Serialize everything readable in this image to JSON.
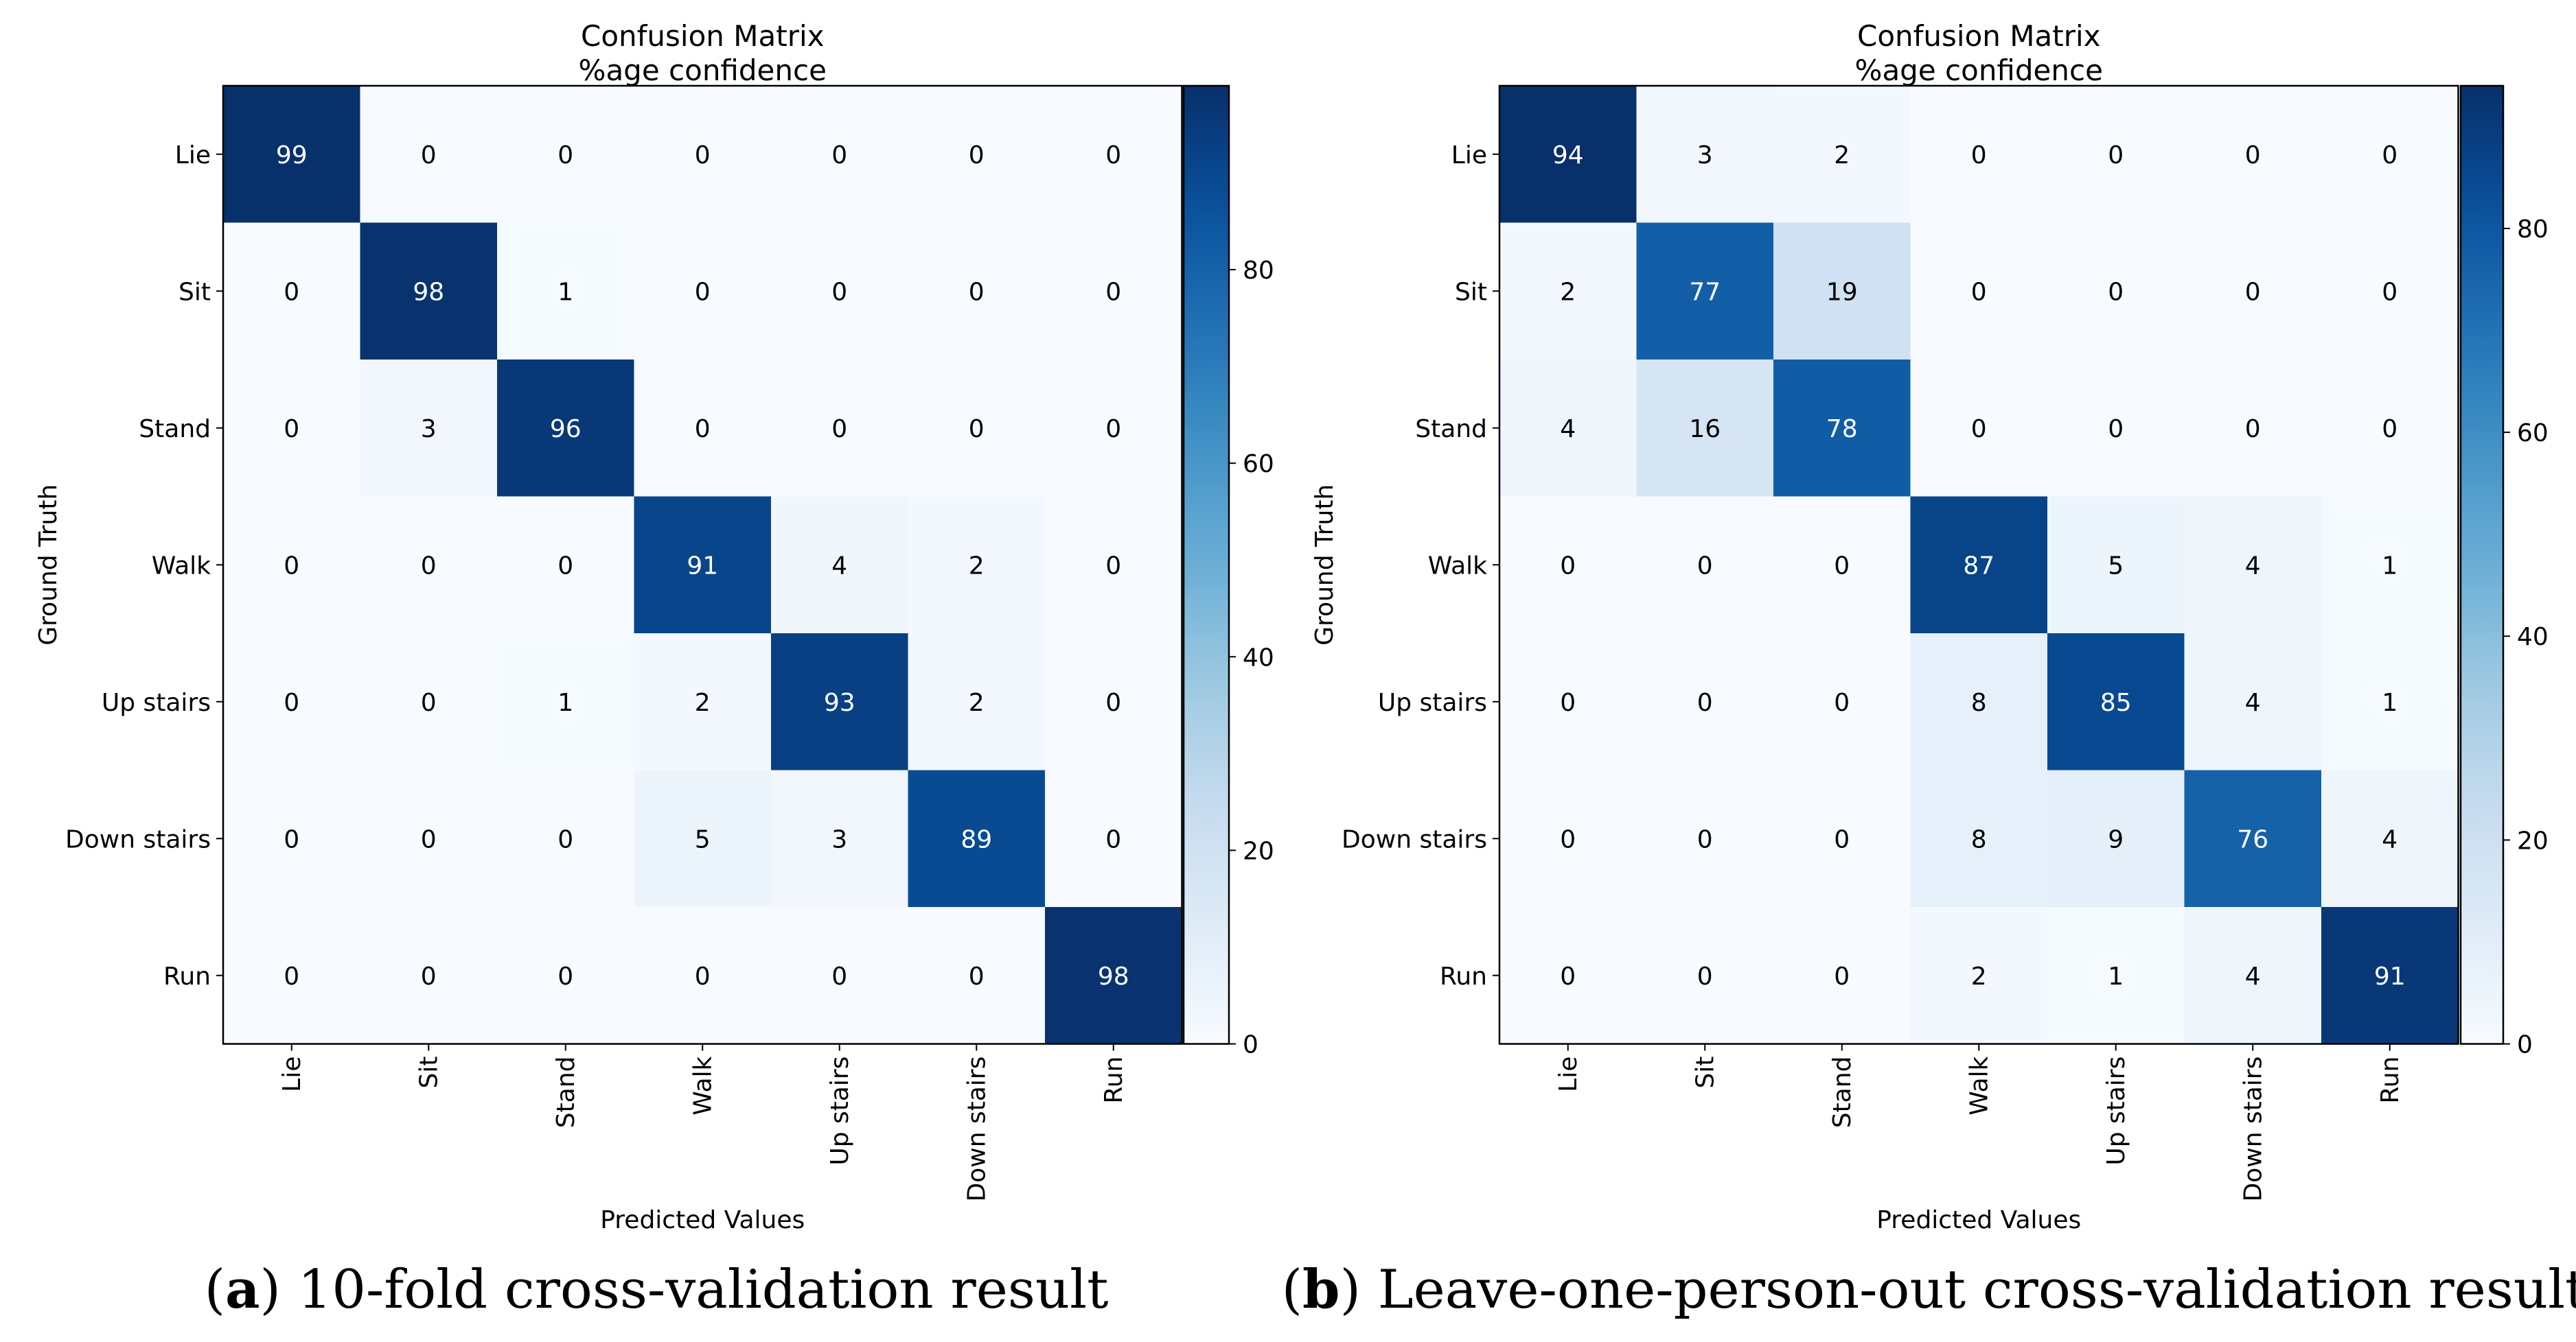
{
  "chart_data": [
    {
      "type": "heatmap",
      "id": "a",
      "title_line1": "Confusion Matrix",
      "title_line2": "%age confidence",
      "xlabel": "Predicted Values",
      "ylabel": "Ground Truth",
      "x_categories": [
        "Lie",
        "Sit",
        "Stand",
        "Walk",
        "Up stairs",
        "Down stairs",
        "Run"
      ],
      "y_categories": [
        "Lie",
        "Sit",
        "Stand",
        "Walk",
        "Up stairs",
        "Down stairs",
        "Run"
      ],
      "values": [
        [
          99,
          0,
          0,
          0,
          0,
          0,
          0
        ],
        [
          0,
          98,
          1,
          0,
          0,
          0,
          0
        ],
        [
          0,
          3,
          96,
          0,
          0,
          0,
          0
        ],
        [
          0,
          0,
          0,
          91,
          4,
          2,
          0
        ],
        [
          0,
          0,
          1,
          2,
          93,
          2,
          0
        ],
        [
          0,
          0,
          0,
          5,
          3,
          89,
          0
        ],
        [
          0,
          0,
          0,
          0,
          0,
          0,
          98
        ]
      ],
      "colorbar_range": [
        0,
        99
      ],
      "colorbar_ticks": [
        0,
        20,
        40,
        60,
        80
      ],
      "colormap": "Blues",
      "caption_letter": "a",
      "caption_text": "10-fold cross-validation result"
    },
    {
      "type": "heatmap",
      "id": "b",
      "title_line1": "Confusion Matrix",
      "title_line2": "%age confidence",
      "xlabel": "Predicted Values",
      "ylabel": "Ground Truth",
      "x_categories": [
        "Lie",
        "Sit",
        "Stand",
        "Walk",
        "Up stairs",
        "Down stairs",
        "Run"
      ],
      "y_categories": [
        "Lie",
        "Sit",
        "Stand",
        "Walk",
        "Up stairs",
        "Down stairs",
        "Run"
      ],
      "values": [
        [
          94,
          3,
          2,
          0,
          0,
          0,
          0
        ],
        [
          2,
          77,
          19,
          0,
          0,
          0,
          0
        ],
        [
          4,
          16,
          78,
          0,
          0,
          0,
          0
        ],
        [
          0,
          0,
          0,
          87,
          5,
          4,
          1
        ],
        [
          0,
          0,
          0,
          8,
          85,
          4,
          1
        ],
        [
          0,
          0,
          0,
          8,
          9,
          76,
          4
        ],
        [
          0,
          0,
          0,
          2,
          1,
          4,
          91
        ]
      ],
      "colorbar_range": [
        0,
        94
      ],
      "colorbar_ticks": [
        0,
        20,
        40,
        60,
        80
      ],
      "colormap": "Blues",
      "caption_letter": "b",
      "caption_text": "Leave-one-person-out cross-validation result"
    }
  ],
  "colors": {
    "blues_stops": [
      "#f7fbff",
      "#deebf7",
      "#c6dbef",
      "#9ecae1",
      "#6baed6",
      "#4292c6",
      "#2171b5",
      "#08519c",
      "#08306b"
    ],
    "axis": "#000000",
    "text_dark": "#000000",
    "text_light": "#ffffff"
  }
}
